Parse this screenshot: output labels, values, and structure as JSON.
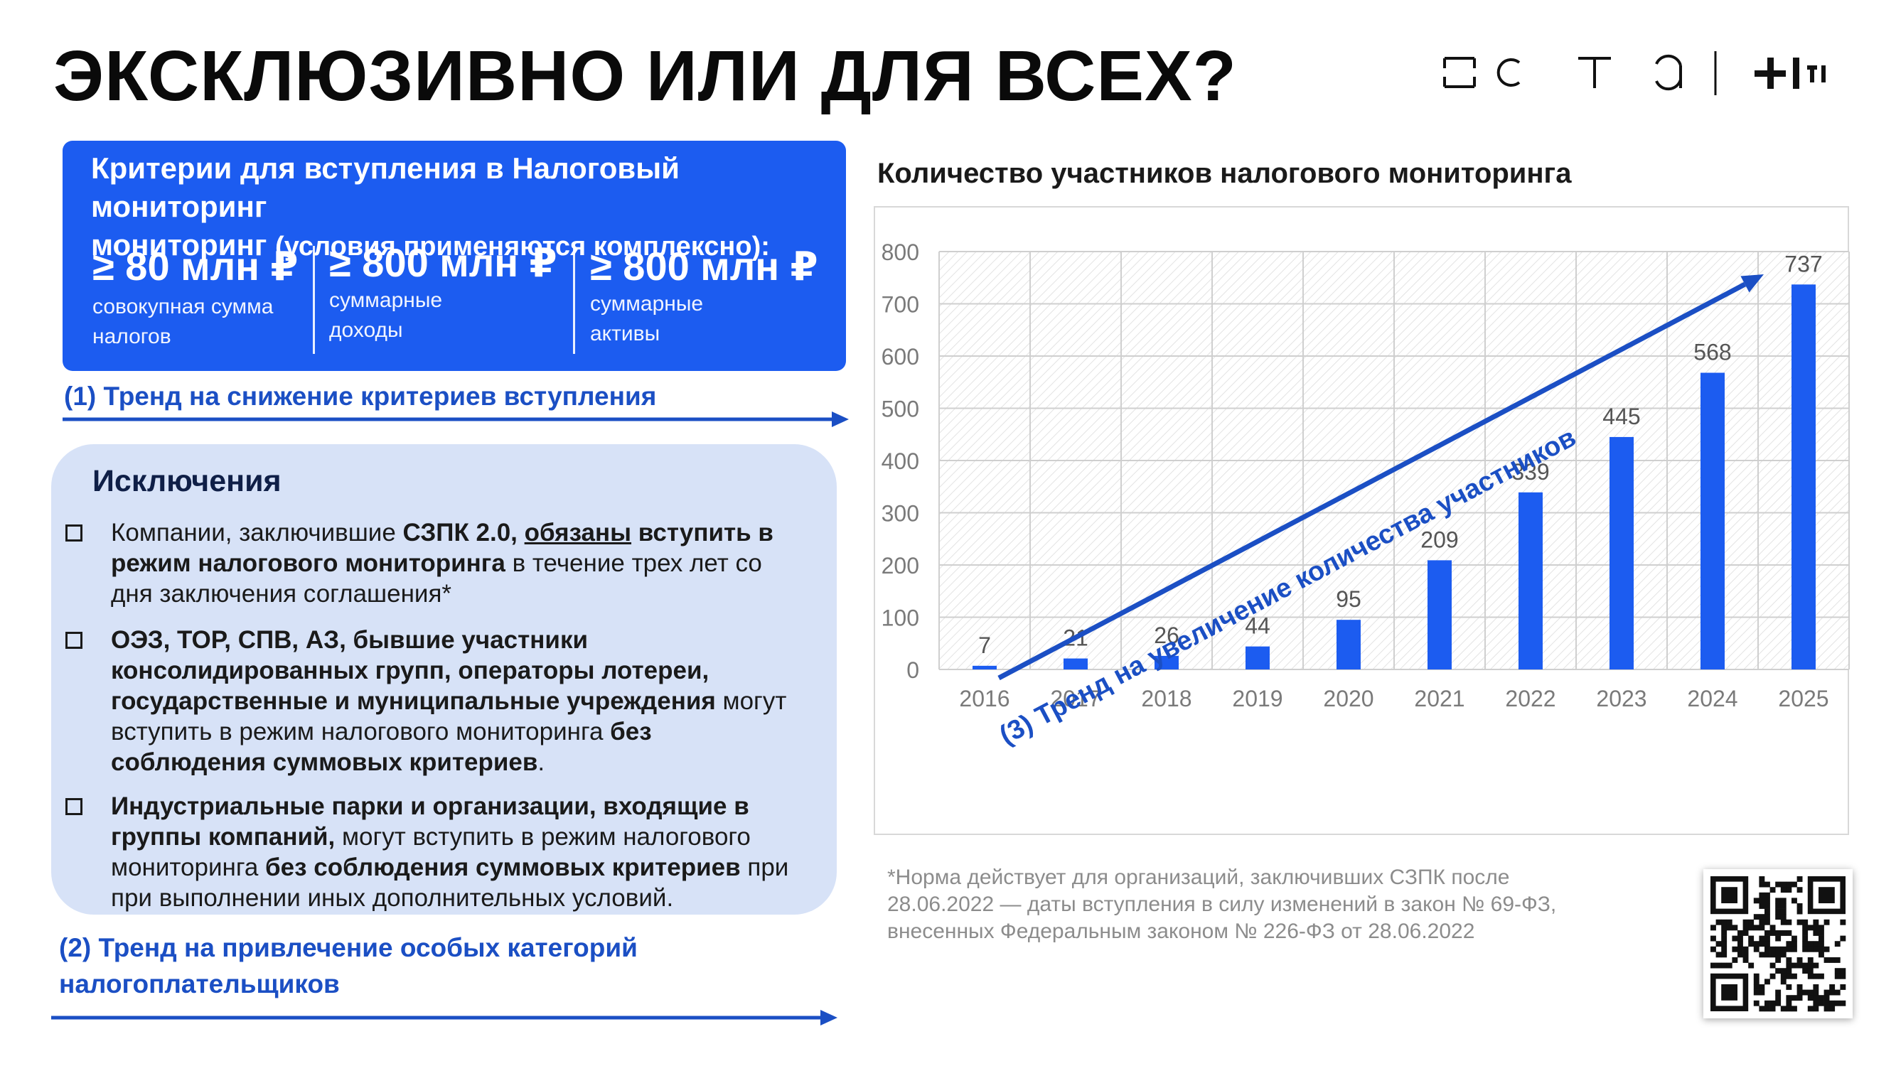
{
  "title": "ЭКСКЛЮЗИВНО ИЛИ ДЛЯ ВСЕХ?",
  "logo": {
    "text": "НОТА",
    "mark": "+ITI"
  },
  "criteria": {
    "title": "Критерии для вступления в Налоговый мониторинг",
    "subtitle": "(условия применяются комплексно):",
    "items": [
      {
        "value": "≥ 80 млн ₽",
        "desc1": "совокупная сумма",
        "desc2": "налогов"
      },
      {
        "value": "≥ 800 млн ₽",
        "desc1": "суммарные",
        "desc2": "доходы"
      },
      {
        "value": "≥ 800 млн ₽",
        "desc1": "суммарные",
        "desc2": "активы"
      }
    ]
  },
  "trend1": "(1) Тренд на снижение критериев вступления",
  "exceptions": {
    "title": "Исключения",
    "items": [
      {
        "l1a": "Компании, заключившие ",
        "l1b": "СЗПК 2.0, ",
        "l1c": "обязаны",
        "l1d": " вступить в",
        "l2a": "режим налогового мониторинга",
        "l2b": " в течение трех лет со",
        "l3": "дня заключения соглашения*"
      },
      {
        "l1": "ОЭЗ, ТОР, СПВ, АЗ, бывшие участники",
        "l2": "консолидированных групп, операторы лотереи,",
        "l3a": "государственные и муниципальные учреждения",
        "l3b": " могут",
        "l4a": "вступить в режим налогового мониторинга ",
        "l4b": "без",
        "l5a": "соблюдения суммовых критериев",
        "l5b": "."
      },
      {
        "l1": "Индустриальные парки и организации, входящие в",
        "l2a": "группы компаний,",
        "l2b": " могут вступить в режим налогового",
        "l3a": "мониторинга ",
        "l3b": "без соблюдения суммовых критериев",
        "l3c": " при",
        "l4": "при выполнении иных дополнительных условий."
      }
    ]
  },
  "trend2": {
    "line1": "(2) Тренд на привлечение особых категорий",
    "line2": "налогоплательщиков"
  },
  "colors": {
    "accent": "#1c5cf0",
    "trend": "#1b4fc4",
    "panel": "#d7e2f7"
  },
  "chart_data": {
    "type": "bar",
    "title": "Количество участников налогового мониторинга",
    "categories": [
      "2016",
      "2017",
      "2018",
      "2019",
      "2020",
      "2021",
      "2022",
      "2023",
      "2024",
      "2025"
    ],
    "values": [
      7,
      21,
      26,
      44,
      95,
      209,
      339,
      445,
      568,
      737
    ],
    "ylim": [
      0,
      800
    ],
    "yticks": [
      0,
      100,
      200,
      300,
      400,
      500,
      600,
      700,
      800
    ],
    "grid": true,
    "bar_color": "#1c5cf0",
    "annotation": "(3) Тренд на увеличение количества участников"
  },
  "footnote": {
    "line1": "*Норма действует для организаций, заключивших СЗПК после",
    "line2": "28.06.2022 — даты вступления в силу изменений в закон № 69-ФЗ,",
    "line3": "внесенных Федеральным законом № 226-ФЗ от 28.06.2022"
  },
  "qr_icon": "qr-code"
}
